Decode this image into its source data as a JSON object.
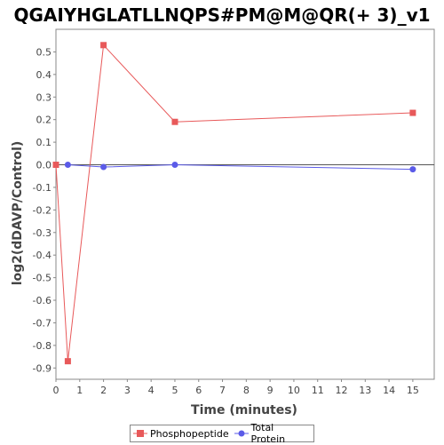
{
  "chart_data": {
    "type": "line",
    "title": "QGAIYHGLATLLNQPS#PM@M@QR(+ 3)_v1",
    "xlabel": "Time (minutes)",
    "ylabel": "log2(dDAVP/Control)",
    "xlim": [
      0,
      15.9
    ],
    "ylim": [
      -0.95,
      0.6
    ],
    "x_ticks": [
      0,
      1,
      2,
      3,
      4,
      5,
      6,
      7,
      8,
      9,
      10,
      11,
      12,
      13,
      14,
      15
    ],
    "y_ticks": [
      0.5,
      0.4,
      0.3,
      0.2,
      0.1,
      0.0,
      -0.1,
      -0.2,
      -0.3,
      -0.4,
      -0.5,
      -0.6,
      -0.7,
      -0.8,
      -0.9
    ],
    "y_tick_labels": [
      "0.5",
      "0.4",
      "0.3",
      "0.2",
      "0.1",
      "0.0",
      "-0.1",
      "-0.2",
      "-0.3",
      "-0.4",
      "-0.5",
      "-0.6",
      "-0.7",
      "-0.8",
      "-0.9"
    ],
    "zero_line": 0,
    "legend_position": "bottom",
    "series": [
      {
        "name": "Phosphopeptide",
        "color": "#e8595a",
        "marker": "square",
        "x": [
          0,
          0.5,
          2,
          5,
          15
        ],
        "y": [
          0.0,
          -0.87,
          0.53,
          0.19,
          0.23
        ]
      },
      {
        "name": "Total Protein",
        "color": "#5b5be8",
        "marker": "circle",
        "x": [
          0.5,
          2,
          5,
          15
        ],
        "y": [
          0.0,
          -0.01,
          0.0,
          -0.02
        ]
      }
    ]
  }
}
